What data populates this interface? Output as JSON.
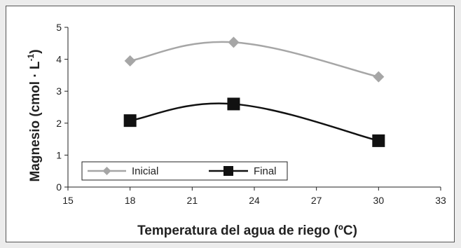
{
  "chart_data": {
    "type": "line",
    "xlabel": "Temperatura del agua de riego (ºC)",
    "ylabel_main": "Magnesio (cmol · L",
    "ylabel_sup": "-1",
    "ylabel_close": ")",
    "xlim": [
      15,
      33
    ],
    "ylim": [
      0,
      5
    ],
    "xticks": [
      "15",
      "18",
      "21",
      "24",
      "27",
      "30",
      "33"
    ],
    "yticks": [
      "0",
      "1",
      "2",
      "3",
      "4",
      "5"
    ],
    "grid": false,
    "legend_position": "bottom-left",
    "series": [
      {
        "name": "Inicial",
        "marker": "diamond",
        "color": "#a6a6a6",
        "smooth": true,
        "x": [
          18,
          23,
          30
        ],
        "y": [
          3.95,
          4.53,
          3.45
        ]
      },
      {
        "name": "Final",
        "marker": "square",
        "color": "#111111",
        "smooth": true,
        "x": [
          18,
          23,
          30
        ],
        "y": [
          2.08,
          2.6,
          1.45
        ]
      }
    ]
  }
}
